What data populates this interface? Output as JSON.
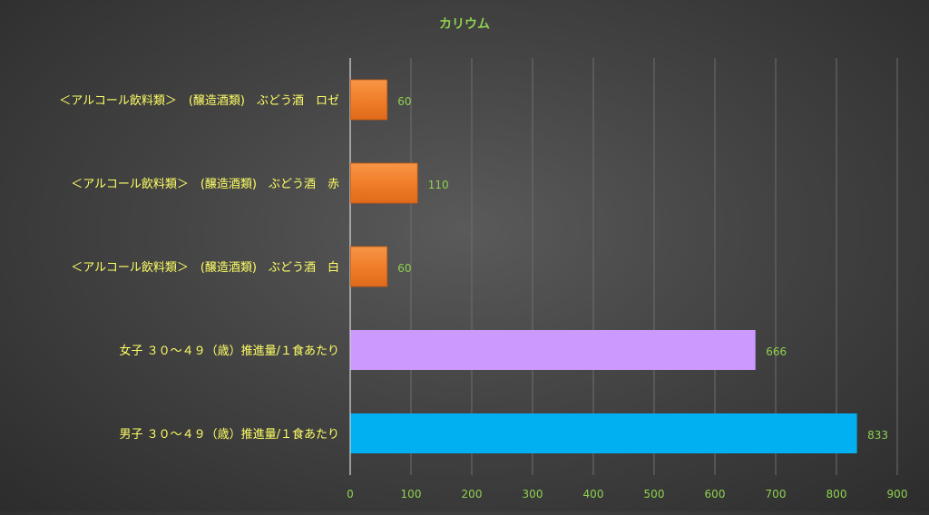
{
  "chart_data": {
    "type": "bar",
    "orientation": "horizontal",
    "title": "カリウム",
    "categories": [
      "＜アルコール飲料類＞　(醸造酒類)　ぶどう酒　ロゼ",
      "＜アルコール飲料類＞　(醸造酒類)　ぶどう酒　赤",
      "＜アルコール飲料類＞　(醸造酒類)　ぶどう酒　白",
      "女子 ３０～４９（歳）推進量/１食あたり",
      "男子 ３０～４９（歳）推進量/１食あたり"
    ],
    "values": [
      60,
      110,
      60,
      666,
      833
    ],
    "bar_colors": [
      "#F07E2A",
      "#F07E2A",
      "#F07E2A",
      "#CC99FF",
      "#00B0F0"
    ],
    "xlim": [
      0,
      900
    ],
    "xticks": [
      0,
      100,
      200,
      300,
      400,
      500,
      600,
      700,
      800,
      900
    ],
    "grid": true,
    "legend": "none",
    "colors": {
      "title": "#8FD14F",
      "category_label": "#FFFF66",
      "tick_label": "#8FD14F",
      "data_label": "#8FD14F",
      "gridline": "#6E6E6E",
      "axis": "#D9D9D9"
    }
  }
}
